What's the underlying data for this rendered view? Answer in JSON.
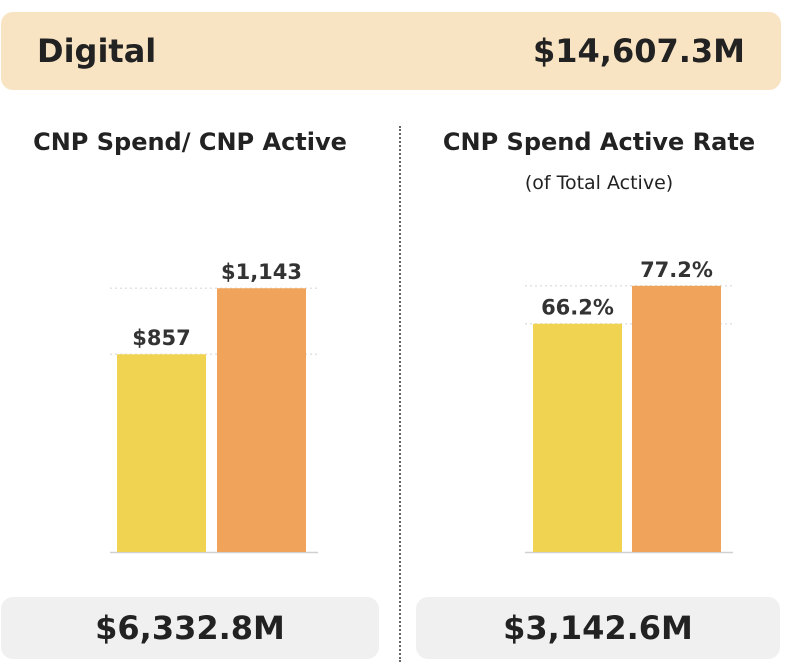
{
  "header": {
    "label": "Digital",
    "value": "$14,607.3M"
  },
  "colors": {
    "bar_1": "#f0d451",
    "bar_2": "#f0a35a",
    "header_bg": "#f8e3c3",
    "footer_bg": "#f0f0f0"
  },
  "chart_data": [
    {
      "type": "bar",
      "title": "CNP Spend/ CNP Active",
      "subtitle": "",
      "values": [
        857,
        1143
      ],
      "data_labels": [
        "$857",
        "$1,143"
      ],
      "ylim": [
        0,
        1300
      ],
      "grid": true,
      "footer": "$6,332.8M"
    },
    {
      "type": "bar",
      "title": "CNP Spend Active Rate",
      "subtitle": "(of Total Active)",
      "values": [
        66.2,
        77.2
      ],
      "data_labels": [
        "66.2%",
        "77.2%"
      ],
      "ylim": [
        0,
        87
      ],
      "grid": true,
      "footer": "$3,142.6M"
    }
  ]
}
